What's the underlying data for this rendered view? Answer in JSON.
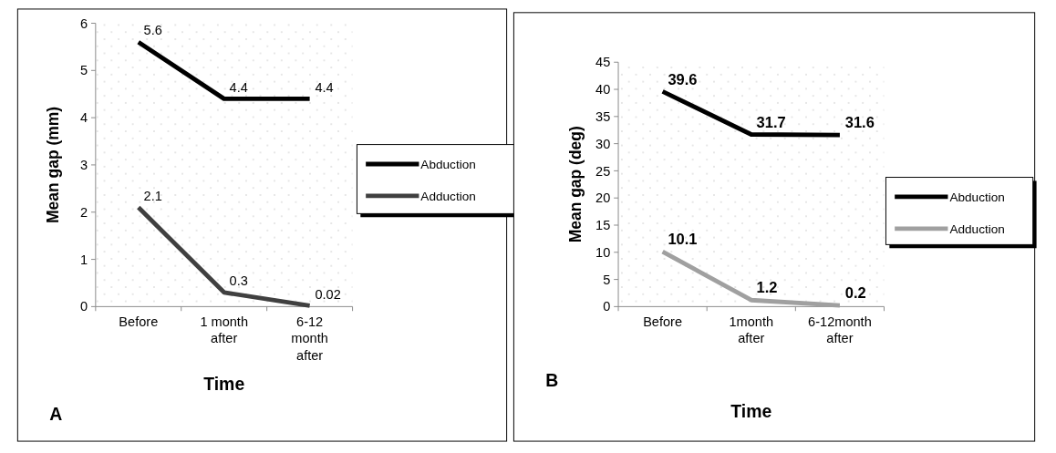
{
  "chart_data": [
    {
      "type": "line",
      "categories": [
        "Before",
        "1 month after",
        "6-12 month after"
      ],
      "xlabel": "Time",
      "ylabel": "Mean gap (mm)",
      "ylim": [
        0,
        6
      ],
      "yticks": [
        0,
        1,
        2,
        3,
        4,
        5,
        6
      ],
      "grid": false,
      "legend": "right",
      "data_labels": true,
      "annotations": [
        "A"
      ],
      "series": [
        {
          "name": "Abduction",
          "color": "#000000",
          "values": [
            5.6,
            4.4,
            4.4
          ]
        },
        {
          "name": "Adduction",
          "color": "#404040",
          "values": [
            2.1,
            0.3,
            0.02
          ]
        }
      ]
    },
    {
      "type": "line",
      "categories": [
        "Before",
        "1month after",
        "6-12month after"
      ],
      "xlabel": "Time",
      "ylabel": "Mean gap (deg)",
      "ylim": [
        0,
        45
      ],
      "yticks": [
        0,
        5,
        10,
        15,
        20,
        25,
        30,
        35,
        40,
        45
      ],
      "grid": false,
      "legend": "right",
      "data_labels": true,
      "annotations": [
        "B"
      ],
      "series": [
        {
          "name": "Abduction",
          "color": "#000000",
          "values": [
            39.6,
            31.7,
            31.6
          ]
        },
        {
          "name": "Adduction",
          "color": "#a0a0a0",
          "values": [
            10.1,
            1.2,
            0.2
          ]
        }
      ]
    }
  ]
}
